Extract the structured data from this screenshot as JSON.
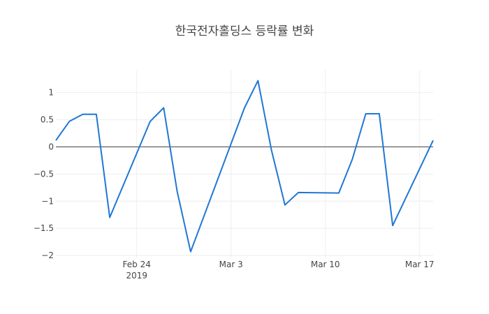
{
  "chart_data": {
    "type": "line",
    "title": "한국전자홀딩스 등락률 변화",
    "xlabel": "",
    "ylabel": "",
    "x_axis_type": "date",
    "xlim": [
      "2019-02-18",
      "2019-03-18"
    ],
    "ylim": [
      -2.05,
      1.42
    ],
    "x_ticks": [
      {
        "date": "2019-02-24",
        "label": "Feb 24",
        "sublabel": "2019"
      },
      {
        "date": "2019-03-03",
        "label": "Mar 3",
        "sublabel": ""
      },
      {
        "date": "2019-03-10",
        "label": "Mar 10",
        "sublabel": ""
      },
      {
        "date": "2019-03-17",
        "label": "Mar 17",
        "sublabel": ""
      }
    ],
    "y_ticks": [
      {
        "value": 1,
        "label": "1"
      },
      {
        "value": 0.5,
        "label": "0.5"
      },
      {
        "value": 0,
        "label": "0"
      },
      {
        "value": -0.5,
        "label": "−0.5"
      },
      {
        "value": -1,
        "label": "−1"
      },
      {
        "value": -1.5,
        "label": "−1.5"
      },
      {
        "value": -2,
        "label": "−2"
      }
    ],
    "grid": true,
    "zero_line": true,
    "series": [
      {
        "color": "#1f77d4",
        "x": [
          "2019-02-18",
          "2019-02-19",
          "2019-02-20",
          "2019-02-21",
          "2019-02-22",
          "2019-02-25",
          "2019-02-26",
          "2019-02-27",
          "2019-02-28",
          "2019-03-04",
          "2019-03-05",
          "2019-03-06",
          "2019-03-07",
          "2019-03-08",
          "2019-03-11",
          "2019-03-12",
          "2019-03-13",
          "2019-03-14",
          "2019-03-15",
          "2019-03-18"
        ],
        "y": [
          0.12,
          0.47,
          0.6,
          0.6,
          -1.3,
          0.47,
          0.72,
          -0.82,
          -1.93,
          0.72,
          1.22,
          -0.06,
          -1.07,
          -0.84,
          -0.85,
          -0.23,
          0.61,
          0.61,
          -1.45,
          0.12
        ]
      }
    ]
  }
}
